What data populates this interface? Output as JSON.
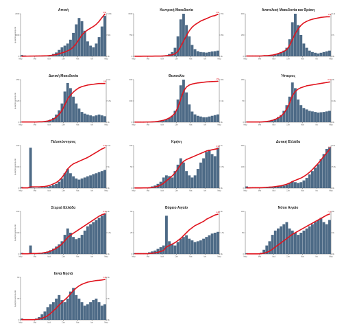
{
  "figure": {
    "bar_color": "#4d6a86",
    "line_color": "#e0141e"
  },
  "chart_data": [
    {
      "type": "bar",
      "title": "Αττική",
      "x_labels": [
        "Μαρ",
        "Μαϊ",
        "Ιουλ",
        "Σεπ",
        "Νοε",
        "Ιαν",
        "Μαρ"
      ],
      "ylabel": "ημερήσια κρούσματα",
      "ylim": [
        0,
        2000
      ],
      "y2lim": [
        0,
        100000
      ],
      "end_label": "99k",
      "series": [
        {
          "name": "daily",
          "values": [
            60,
            40,
            30,
            20,
            15,
            10,
            10,
            12,
            18,
            30,
            60,
            110,
            180,
            300,
            420,
            500,
            600,
            780,
            1100,
            1500,
            1800,
            1650,
            1200,
            700,
            500,
            420,
            600,
            900,
            1400,
            1900
          ]
        },
        {
          "name": "cumulative",
          "values": [
            0.1,
            0.3,
            0.4,
            0.5,
            0.6,
            0.7,
            0.8,
            0.9,
            1.1,
            1.4,
            2,
            3,
            4,
            6,
            8,
            10,
            13,
            16,
            22,
            30,
            40,
            50,
            57,
            62,
            66,
            70,
            75,
            82,
            91,
            99
          ]
        }
      ]
    },
    {
      "type": "bar",
      "title": "Κεντρική Μακεδονία",
      "x_labels": [
        "Μαρ",
        "Μαϊ",
        "Ιουλ",
        "Σεπ",
        "Νοε",
        "Ιαν",
        "Μαρ"
      ],
      "ylim": [
        0,
        1500
      ],
      "y2lim": [
        0,
        70000
      ],
      "end_label": "69k",
      "series": [
        {
          "name": "daily",
          "values": [
            5,
            5,
            3,
            2,
            2,
            2,
            3,
            4,
            6,
            10,
            20,
            40,
            80,
            150,
            300,
            700,
            1300,
            1500,
            1100,
            700,
            400,
            250,
            180,
            150,
            140,
            130,
            150,
            170,
            180,
            200
          ]
        },
        {
          "name": "cumulative",
          "values": [
            0.1,
            0.1,
            0.1,
            0.2,
            0.2,
            0.2,
            0.2,
            0.3,
            0.3,
            0.4,
            0.6,
            1,
            1.5,
            2.5,
            4,
            8,
            16,
            25,
            34,
            42,
            48,
            52,
            55,
            58,
            60,
            62,
            64,
            66,
            67,
            69
          ]
        }
      ]
    },
    {
      "type": "bar",
      "title": "Ανατολική Μακεδονία και Θράκη",
      "x_labels": [
        "Μαρ",
        "Μαϊ",
        "Ιουλ",
        "Σεπ",
        "Νοε",
        "Ιαν",
        "Μαρ"
      ],
      "ylim": [
        0,
        300
      ],
      "y2lim": [
        0,
        14000
      ],
      "end_label": "13k",
      "series": [
        {
          "name": "daily",
          "values": [
            3,
            2,
            2,
            1,
            1,
            1,
            2,
            4,
            6,
            10,
            15,
            20,
            30,
            40,
            60,
            120,
            240,
            300,
            220,
            150,
            90,
            60,
            40,
            30,
            25,
            20,
            25,
            30,
            35,
            40
          ]
        },
        {
          "name": "cumulative",
          "values": [
            0.1,
            0.1,
            0.1,
            0.1,
            0.1,
            0.1,
            0.2,
            0.2,
            0.3,
            0.4,
            0.6,
            0.9,
            1.2,
            1.6,
            2.2,
            3.5,
            5.5,
            7.5,
            9,
            10.2,
            11,
            11.5,
            11.9,
            12.2,
            12.4,
            12.6,
            12.8,
            12.9,
            13,
            13
          ]
        }
      ]
    },
    {
      "type": "bar",
      "title": "Δυτική Μακεδονία",
      "x_labels": [
        "Μαρ",
        "Μαϊ",
        "Ιουλ",
        "Σεπ",
        "Νοε",
        "Ιαν",
        "Μαρ"
      ],
      "ylabel": "ημερήσια κρούσματα",
      "ylim": [
        0,
        250
      ],
      "y2lim": [
        0,
        11000
      ],
      "end_label": "10k",
      "series": [
        {
          "name": "daily",
          "values": [
            3,
            2,
            1,
            1,
            1,
            1,
            2,
            3,
            5,
            8,
            15,
            25,
            45,
            70,
            110,
            180,
            230,
            200,
            150,
            110,
            80,
            60,
            50,
            45,
            40,
            35,
            40,
            45,
            40,
            35
          ]
        },
        {
          "name": "cumulative",
          "values": [
            0.05,
            0.05,
            0.05,
            0.05,
            0.05,
            0.05,
            0.1,
            0.1,
            0.2,
            0.3,
            0.5,
            0.8,
            1.3,
            2,
            3,
            4.5,
            6,
            7,
            7.8,
            8.4,
            8.9,
            9.2,
            9.4,
            9.6,
            9.7,
            9.8,
            9.9,
            10,
            10,
            10
          ]
        }
      ]
    },
    {
      "type": "bar",
      "title": "Θεσσαλία",
      "x_labels": [
        "Μαρ",
        "Μαϊ",
        "Ιουλ",
        "Σεπ",
        "Νοε",
        "Ιαν",
        "Μαρ"
      ],
      "ylim": [
        0,
        600
      ],
      "y2lim": [
        0,
        26000
      ],
      "end_label": "25k",
      "series": [
        {
          "name": "daily",
          "values": [
            2,
            1,
            1,
            1,
            1,
            2,
            4,
            8,
            12,
            20,
            30,
            40,
            60,
            90,
            160,
            320,
            520,
            600,
            420,
            250,
            150,
            110,
            90,
            80,
            70,
            70,
            80,
            90,
            100,
            110
          ]
        },
        {
          "name": "cumulative",
          "values": [
            0.05,
            0.05,
            0.05,
            0.05,
            0.1,
            0.1,
            0.2,
            0.3,
            0.5,
            0.8,
            1.2,
            1.8,
            2.6,
            3.8,
            5.5,
            9,
            14,
            19,
            21.5,
            22.7,
            23.3,
            23.7,
            24,
            24.2,
            24.4,
            24.6,
            24.7,
            24.8,
            24.9,
            25
          ]
        }
      ]
    },
    {
      "type": "bar",
      "title": "Ήπειρος",
      "x_labels": [
        "Μαρ",
        "Μαϊ",
        "Ιουλ",
        "Σεπ",
        "Νοε",
        "Ιαν",
        "Μαρ"
      ],
      "ylim": [
        0,
        150
      ],
      "y2lim": [
        0,
        9000
      ],
      "end_label": "8.5k",
      "series": [
        {
          "name": "daily",
          "values": [
            1,
            1,
            1,
            1,
            1,
            1,
            2,
            3,
            5,
            8,
            12,
            18,
            25,
            40,
            60,
            90,
            140,
            120,
            80,
            60,
            50,
            45,
            40,
            38,
            36,
            34,
            35,
            36,
            38,
            40
          ]
        },
        {
          "name": "cumulative",
          "values": [
            0.05,
            0.05,
            0.05,
            0.05,
            0.05,
            0.05,
            0.1,
            0.15,
            0.25,
            0.4,
            0.6,
            0.9,
            1.3,
            1.9,
            2.8,
            4,
            5.6,
            6.5,
            7,
            7.3,
            7.5,
            7.7,
            7.8,
            7.9,
            8,
            8.1,
            8.2,
            8.3,
            8.4,
            8.5
          ]
        }
      ]
    },
    {
      "type": "bar",
      "title": "Πελοπόννησος",
      "x_labels": [
        "Μαρ",
        "Μαϊ",
        "Ιουλ",
        "Σεπ",
        "Νοε",
        "Ιαν",
        "Μαρ"
      ],
      "ylabel": "ημερήσια κρούσματα",
      "ylim": [
        0,
        200
      ],
      "y2lim": [
        0,
        10000
      ],
      "end_label": "9.5k",
      "series": [
        {
          "name": "daily",
          "values": [
            5,
            2,
            1,
            190,
            2,
            1,
            2,
            3,
            4,
            6,
            10,
            15,
            20,
            30,
            45,
            70,
            90,
            70,
            55,
            45,
            40,
            45,
            50,
            55,
            60,
            65,
            70,
            75,
            80,
            85
          ]
        },
        {
          "name": "cumulative",
          "values": [
            0.05,
            0.05,
            0.05,
            0.3,
            0.3,
            0.3,
            0.3,
            0.35,
            0.4,
            0.5,
            0.7,
            1,
            1.3,
            1.8,
            2.5,
            3.4,
            4.5,
            5.2,
            5.7,
            6,
            6.3,
            6.6,
            6.9,
            7.2,
            7.6,
            8,
            8.4,
            8.8,
            9.2,
            9.5
          ]
        }
      ]
    },
    {
      "type": "bar",
      "title": "Κρήτη",
      "x_labels": [
        "Μαρ",
        "Μαϊ",
        "Ιουλ",
        "Σεπ",
        "Νοε",
        "Ιαν",
        "Μαρ"
      ],
      "ylim": [
        0,
        100
      ],
      "y2lim": [
        0,
        7000
      ],
      "end_label": "6.5k",
      "series": [
        {
          "name": "daily",
          "values": [
            1,
            1,
            1,
            1,
            1,
            2,
            4,
            6,
            10,
            15,
            25,
            30,
            28,
            25,
            40,
            55,
            70,
            60,
            40,
            30,
            25,
            30,
            45,
            60,
            70,
            85,
            90,
            80,
            75,
            95
          ]
        },
        {
          "name": "cumulative",
          "values": [
            0.02,
            0.02,
            0.02,
            0.03,
            0.03,
            0.05,
            0.1,
            0.2,
            0.3,
            0.5,
            0.8,
            1.2,
            1.6,
            2,
            2.5,
            3.2,
            3.9,
            4.4,
            4.7,
            4.9,
            5.1,
            5.3,
            5.5,
            5.7,
            5.9,
            6.1,
            6.2,
            6.3,
            6.4,
            6.5
          ]
        }
      ]
    },
    {
      "type": "bar",
      "title": "Δυτική Ελλάδα",
      "x_labels": [
        "Μαρ",
        "Μαϊ",
        "Ιουλ",
        "Σεπ",
        "Νοε",
        "Ιαν",
        "Μαρ"
      ],
      "ylim": [
        0,
        250
      ],
      "y2lim": [
        0,
        11000
      ],
      "end_label": "10k",
      "series": [
        {
          "name": "daily",
          "values": [
            10,
            5,
            3,
            2,
            2,
            2,
            3,
            4,
            5,
            6,
            8,
            10,
            12,
            15,
            20,
            30,
            40,
            35,
            30,
            35,
            45,
            60,
            80,
            100,
            120,
            140,
            170,
            200,
            230,
            240
          ]
        },
        {
          "name": "cumulative",
          "values": [
            0.05,
            0.05,
            0.1,
            0.1,
            0.1,
            0.1,
            0.15,
            0.2,
            0.25,
            0.3,
            0.4,
            0.5,
            0.6,
            0.8,
            1,
            1.3,
            1.7,
            2,
            2.3,
            2.6,
            3,
            3.5,
            4.1,
            4.8,
            5.6,
            6.4,
            7.3,
            8.2,
            9.1,
            10
          ]
        }
      ]
    },
    {
      "type": "bar",
      "title": "Στερεά Ελλάδα",
      "x_labels": [
        "Μαρ",
        "Μαϊ",
        "Ιουλ",
        "Σεπ",
        "Νοε",
        "Ιαν",
        "Μαρ"
      ],
      "ylabel": "ημερήσια κρούσματα",
      "ylim": [
        0,
        200
      ],
      "y2lim": [
        0,
        9000
      ],
      "end_label": "8.5k",
      "series": [
        {
          "name": "daily",
          "values": [
            5,
            3,
            2,
            40,
            5,
            3,
            4,
            6,
            8,
            12,
            18,
            25,
            35,
            45,
            60,
            90,
            120,
            100,
            80,
            70,
            75,
            90,
            110,
            130,
            140,
            150,
            160,
            170,
            180,
            190
          ]
        },
        {
          "name": "cumulative",
          "values": [
            0.05,
            0.05,
            0.05,
            0.1,
            0.1,
            0.1,
            0.15,
            0.2,
            0.3,
            0.4,
            0.6,
            0.9,
            1.2,
            1.6,
            2.1,
            2.8,
            3.5,
            4,
            4.4,
            4.8,
            5.2,
            5.6,
            6,
            6.4,
            6.8,
            7.2,
            7.6,
            8,
            8.3,
            8.5
          ]
        }
      ]
    },
    {
      "type": "bar",
      "title": "Βόρειο Αιγαίο",
      "x_labels": [
        "Μαρ",
        "Μαϊ",
        "Ιουλ",
        "Σεπ",
        "Νοε",
        "Ιαν",
        "Μαρ"
      ],
      "ylim": [
        0,
        50
      ],
      "y2lim": [
        0,
        3000
      ],
      "end_label": "2.8k",
      "series": [
        {
          "name": "daily",
          "values": [
            1,
            1,
            1,
            1,
            1,
            2,
            3,
            4,
            6,
            8,
            10,
            45,
            15,
            12,
            10,
            14,
            18,
            20,
            22,
            18,
            16,
            14,
            15,
            16,
            18,
            20,
            22,
            24,
            25,
            26
          ]
        },
        {
          "name": "cumulative",
          "values": [
            0.02,
            0.02,
            0.02,
            0.02,
            0.02,
            0.03,
            0.05,
            0.08,
            0.12,
            0.18,
            0.25,
            0.5,
            0.6,
            0.7,
            0.8,
            0.95,
            1.1,
            1.3,
            1.5,
            1.7,
            1.85,
            2,
            2.1,
            2.2,
            2.3,
            2.45,
            2.55,
            2.65,
            2.75,
            2.8
          ]
        }
      ]
    },
    {
      "type": "bar",
      "title": "Νότιο Αιγαίο",
      "x_labels": [
        "Μαρ",
        "Μαϊ",
        "Ιουλ",
        "Σεπ",
        "Νοε",
        "Ιαν",
        "Μαρ"
      ],
      "ylim": [
        0,
        100
      ],
      "y2lim": [
        0,
        8000
      ],
      "end_label": "7.5k",
      "series": [
        {
          "name": "daily",
          "values": [
            2,
            1,
            1,
            1,
            1,
            3,
            10,
            20,
            30,
            45,
            55,
            60,
            65,
            70,
            75,
            60,
            55,
            50,
            45,
            50,
            55,
            60,
            65,
            70,
            75,
            80,
            85,
            75,
            70,
            80
          ]
        },
        {
          "name": "cumulative",
          "values": [
            0.02,
            0.02,
            0.02,
            0.02,
            0.02,
            0.05,
            0.15,
            0.3,
            0.55,
            0.9,
            1.3,
            1.7,
            2.1,
            2.5,
            2.9,
            3.3,
            3.7,
            4,
            4.3,
            4.6,
            4.9,
            5.2,
            5.5,
            5.8,
            6.1,
            6.4,
            6.7,
            7,
            7.3,
            7.5
          ]
        }
      ]
    },
    {
      "type": "bar",
      "title": "Ιόνια Νησιά",
      "x_labels": [
        "Μαρ",
        "Μαϊ",
        "Ιουλ",
        "Σεπ",
        "Νοε",
        "Ιαν",
        "Μαρ"
      ],
      "ylabel": "ημερήσια κρούσματα",
      "ylim": [
        0,
        60
      ],
      "y2lim": [
        0,
        4000
      ],
      "end_label": "3.8k",
      "series": [
        {
          "name": "daily",
          "values": [
            2,
            1,
            1,
            1,
            1,
            2,
            4,
            8,
            12,
            18,
            22,
            25,
            30,
            35,
            28,
            25,
            30,
            40,
            45,
            35,
            30,
            25,
            20,
            22,
            25,
            28,
            30,
            25,
            20,
            22
          ]
        },
        {
          "name": "cumulative",
          "values": [
            0.02,
            0.02,
            0.02,
            0.02,
            0.02,
            0.04,
            0.08,
            0.15,
            0.25,
            0.4,
            0.6,
            0.85,
            1.1,
            1.4,
            1.65,
            1.9,
            2.15,
            2.45,
            2.75,
            3,
            3.2,
            3.35,
            3.45,
            3.55,
            3.6,
            3.65,
            3.7,
            3.72,
            3.75,
            3.8
          ]
        }
      ]
    }
  ]
}
